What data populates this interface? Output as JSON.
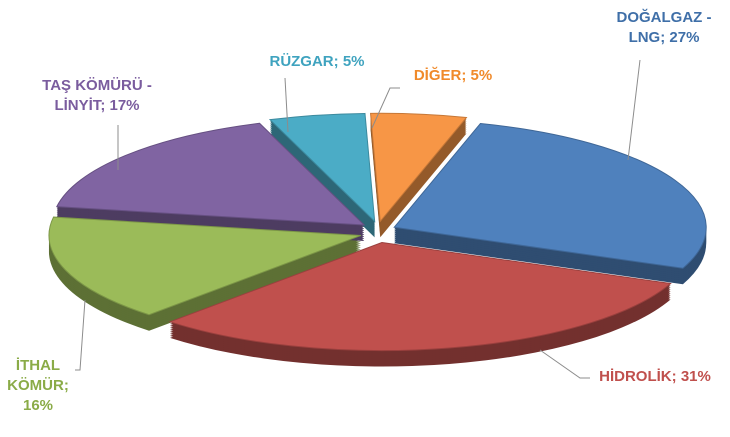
{
  "chart_data": {
    "type": "pie",
    "categories": [
      "DOĞALGAZ - LNG",
      "HİDROLİK",
      "İTHAL KÖMÜR",
      "TAŞ KÖMÜRÜ - LİNYİT",
      "RÜZGAR",
      "DİĞER"
    ],
    "values": [
      27,
      31,
      16,
      17,
      5,
      5
    ],
    "value_labels": [
      "27%",
      "31%",
      "16%",
      "17%",
      "5%",
      "5%"
    ],
    "label_separator": "; ",
    "colors": [
      "#4f81bd",
      "#c0504d",
      "#9bbb59",
      "#8064a2",
      "#4bacc6",
      "#f79646"
    ],
    "label_colors": [
      "#3f6fa8",
      "#c0504d",
      "#8aab47",
      "#7a5c9e",
      "#3fa3bf",
      "#f08a2a"
    ]
  }
}
